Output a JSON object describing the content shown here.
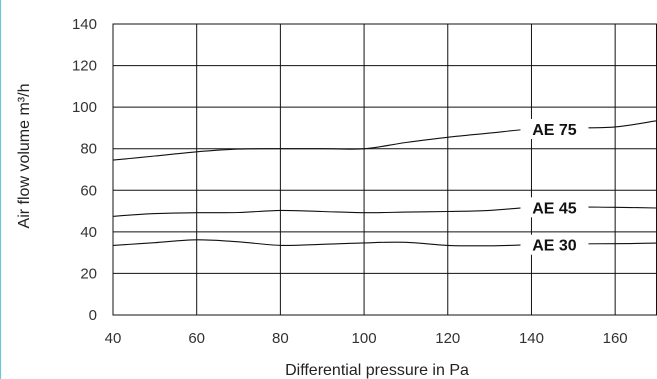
{
  "chart_data": {
    "type": "line",
    "xlabel": "Differential pressure in Pa",
    "ylabel": "Air flow volume m³/h",
    "xlim": [
      40,
      170
    ],
    "ylim": [
      0,
      140
    ],
    "x_ticks": [
      40,
      60,
      80,
      100,
      120,
      140,
      160
    ],
    "y_ticks": [
      0,
      20,
      40,
      60,
      80,
      100,
      120,
      140
    ],
    "grid": true,
    "series": [
      {
        "name": "AE 75",
        "x": [
          40,
          50,
          60,
          70,
          80,
          90,
          100,
          110,
          120,
          130,
          140,
          150,
          160,
          170
        ],
        "y": [
          74.5,
          76.5,
          78.5,
          79.8,
          80,
          80,
          80,
          83,
          85.5,
          87.5,
          89.5,
          90,
          90.5,
          93.5
        ]
      },
      {
        "name": "AE 45",
        "x": [
          40,
          50,
          60,
          70,
          80,
          90,
          100,
          110,
          120,
          130,
          140,
          150,
          160,
          170
        ],
        "y": [
          47.5,
          48.8,
          49.2,
          49.3,
          50.3,
          49.8,
          49.2,
          49.5,
          49.8,
          50.3,
          51.8,
          52,
          51.8,
          51.5
        ]
      },
      {
        "name": "AE 30",
        "x": [
          40,
          50,
          60,
          70,
          80,
          90,
          100,
          110,
          120,
          130,
          140,
          150,
          160,
          170
        ],
        "y": [
          33.5,
          34.8,
          36.2,
          35.2,
          33.5,
          34,
          34.7,
          35,
          33.5,
          33.3,
          33.8,
          34.2,
          34.3,
          34.6
        ]
      }
    ]
  }
}
